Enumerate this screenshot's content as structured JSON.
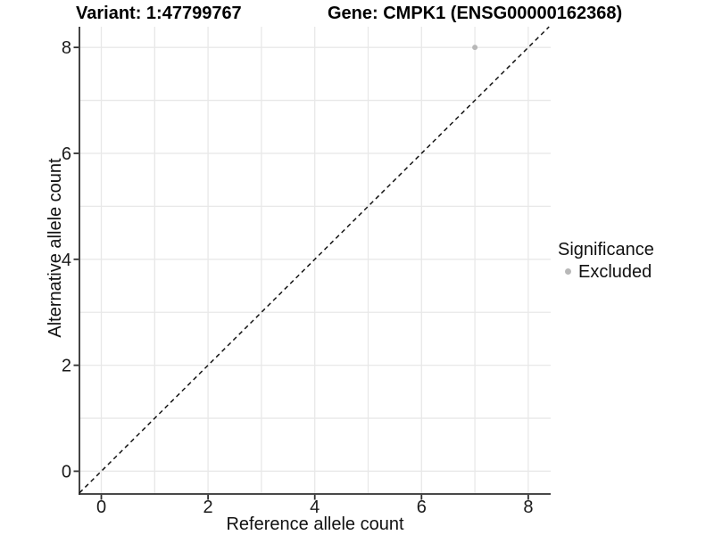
{
  "chart_data": {
    "type": "scatter",
    "title_left": "Variant: 1:47799767",
    "title_right": "Gene: CMPK1 (ENSG00000162368)",
    "xlabel": "Reference allele count",
    "ylabel": "Alternative allele count",
    "xlim": [
      -0.41,
      8.42
    ],
    "ylim": [
      -0.43,
      8.39
    ],
    "xticks": [
      0,
      2,
      4,
      6,
      8
    ],
    "yticks": [
      0,
      2,
      4,
      6,
      8
    ],
    "grid_x": [
      0,
      1,
      2,
      3,
      4,
      5,
      6,
      7,
      8
    ],
    "grid_y": [
      0,
      1,
      2,
      3,
      4,
      5,
      6,
      7,
      8
    ],
    "grid_on": true,
    "grid_color": "#e8e8e8",
    "axis_color": "#2f2f2f",
    "tick_label_color": "#1a1a1a",
    "background_color": "#ffffff",
    "identity_line": {
      "slope": 1,
      "intercept": 0,
      "linestyle": "dashed",
      "color": "#141414"
    },
    "series": [
      {
        "name": "Excluded",
        "color": "#b8b8b8",
        "points": [
          {
            "x": 7,
            "y": 8
          }
        ]
      }
    ],
    "legend": {
      "title": "Significance",
      "position": "right",
      "items": [
        {
          "label": "Excluded",
          "color": "#b8b8b8"
        }
      ]
    }
  }
}
